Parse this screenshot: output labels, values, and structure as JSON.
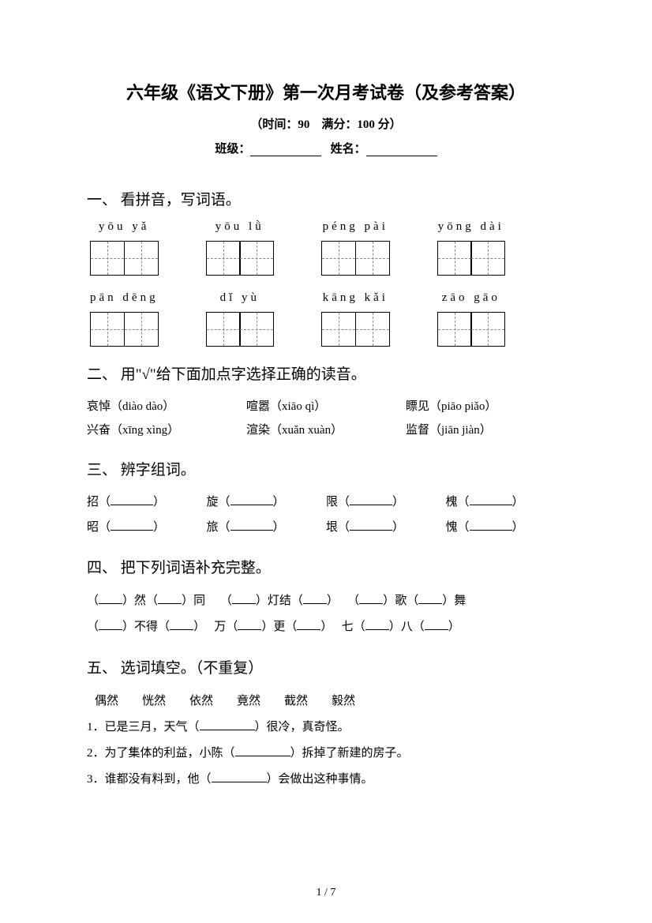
{
  "header": {
    "title": "六年级《语文下册》第一次月考试卷（及参考答案）",
    "subtitle": "（时间：90　满分：100 分）",
    "class_label": "班级：",
    "name_label": "姓名："
  },
  "q1": {
    "title": "一、 看拼音，写词语。",
    "rows": [
      [
        "yōu  yǎ",
        "yōu   lǜ",
        "péng  pài",
        "yōng  dài"
      ],
      [
        "pān  dēng",
        "dǐ  yù",
        "kāng  kǎi",
        "zāo  gāo"
      ]
    ]
  },
  "q2": {
    "title": "二、 用\"√\"给下面加点字选择正确的读音。",
    "rows": [
      [
        "哀悼（diào dào）",
        "喧嚣（xiāo qì）",
        "瞟见（piāo piǎo）"
      ],
      [
        "兴奋（xīng xìng）",
        "渲染（xuǎn xuàn）",
        "监督（jiān jiàn）"
      ]
    ]
  },
  "q3": {
    "title": "三、 辨字组词。",
    "rows": [
      [
        "招",
        "旋",
        "限",
        "槐"
      ],
      [
        "昭",
        "旅",
        "垠",
        "愧"
      ]
    ]
  },
  "q4": {
    "title": "四、 把下列词语补充完整。",
    "items_row1_a": "然",
    "items_row1_b": "同",
    "items_row1_c": "灯结",
    "items_row1_d": "歌",
    "items_row1_e": "舞",
    "items_row2_a": "不得",
    "items_row2_b": "万",
    "items_row2_c": "更",
    "items_row2_d": "七",
    "items_row2_e": "八"
  },
  "q5": {
    "title": "五、 选词填空。（不重复）",
    "words": "偶然　　恍然　　依然　　竟然　　截然　　毅然",
    "s1a": "1．已是三月，天气（",
    "s1b": "）很冷，真奇怪。",
    "s2a": "2．为了集体的利益，小陈（",
    "s2b": "）拆掉了新建的房子。",
    "s3a": "3．谁都没有料到，他（",
    "s3b": "）会做出这种事情。"
  },
  "page": "1 / 7"
}
